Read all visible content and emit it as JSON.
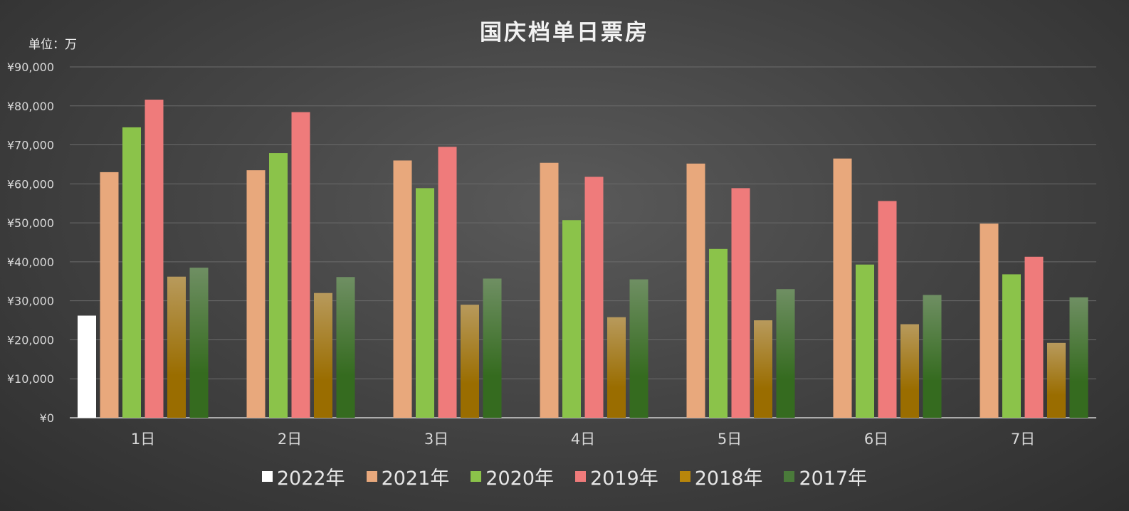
{
  "chart_data": {
    "type": "bar",
    "title": "国庆档单日票房",
    "unit_label": "单位：万",
    "categories": [
      "1日",
      "2日",
      "3日",
      "4日",
      "5日",
      "6日",
      "7日"
    ],
    "ylim": [
      0,
      90000
    ],
    "yticks": [
      {
        "value": 0,
        "label": "¥0"
      },
      {
        "value": 10000,
        "label": "¥10,000"
      },
      {
        "value": 20000,
        "label": "¥20,000"
      },
      {
        "value": 30000,
        "label": "¥30,000"
      },
      {
        "value": 40000,
        "label": "¥40,000"
      },
      {
        "value": 50000,
        "label": "¥50,000"
      },
      {
        "value": 60000,
        "label": "¥60,000"
      },
      {
        "value": 70000,
        "label": "¥70,000"
      },
      {
        "value": 80000,
        "label": "¥80,000"
      },
      {
        "value": 90000,
        "label": "¥90,000"
      }
    ],
    "grid": true,
    "legend_position": "bottom",
    "series": [
      {
        "name": "2022年",
        "color": "#ffffff",
        "values": [
          26200,
          null,
          null,
          null,
          null,
          null,
          null
        ]
      },
      {
        "name": "2021年",
        "color": "#e8a87c",
        "values": [
          63000,
          63500,
          66000,
          65400,
          65200,
          66500,
          49800
        ]
      },
      {
        "name": "2020年",
        "color": "#8bc34a",
        "values": [
          74500,
          67900,
          58900,
          50700,
          43300,
          39300,
          36800
        ]
      },
      {
        "name": "2019年",
        "color": "#ef7b7b",
        "values": [
          81600,
          78400,
          69500,
          61800,
          58900,
          55600,
          41300
        ]
      },
      {
        "name": "2018年",
        "color": "#b8860b",
        "values": [
          36200,
          32000,
          29000,
          25800,
          25000,
          24000,
          19200
        ]
      },
      {
        "name": "2017年",
        "color": "#4a7a3a",
        "values": [
          38500,
          36100,
          35700,
          35500,
          33000,
          31500,
          30900
        ]
      }
    ]
  }
}
